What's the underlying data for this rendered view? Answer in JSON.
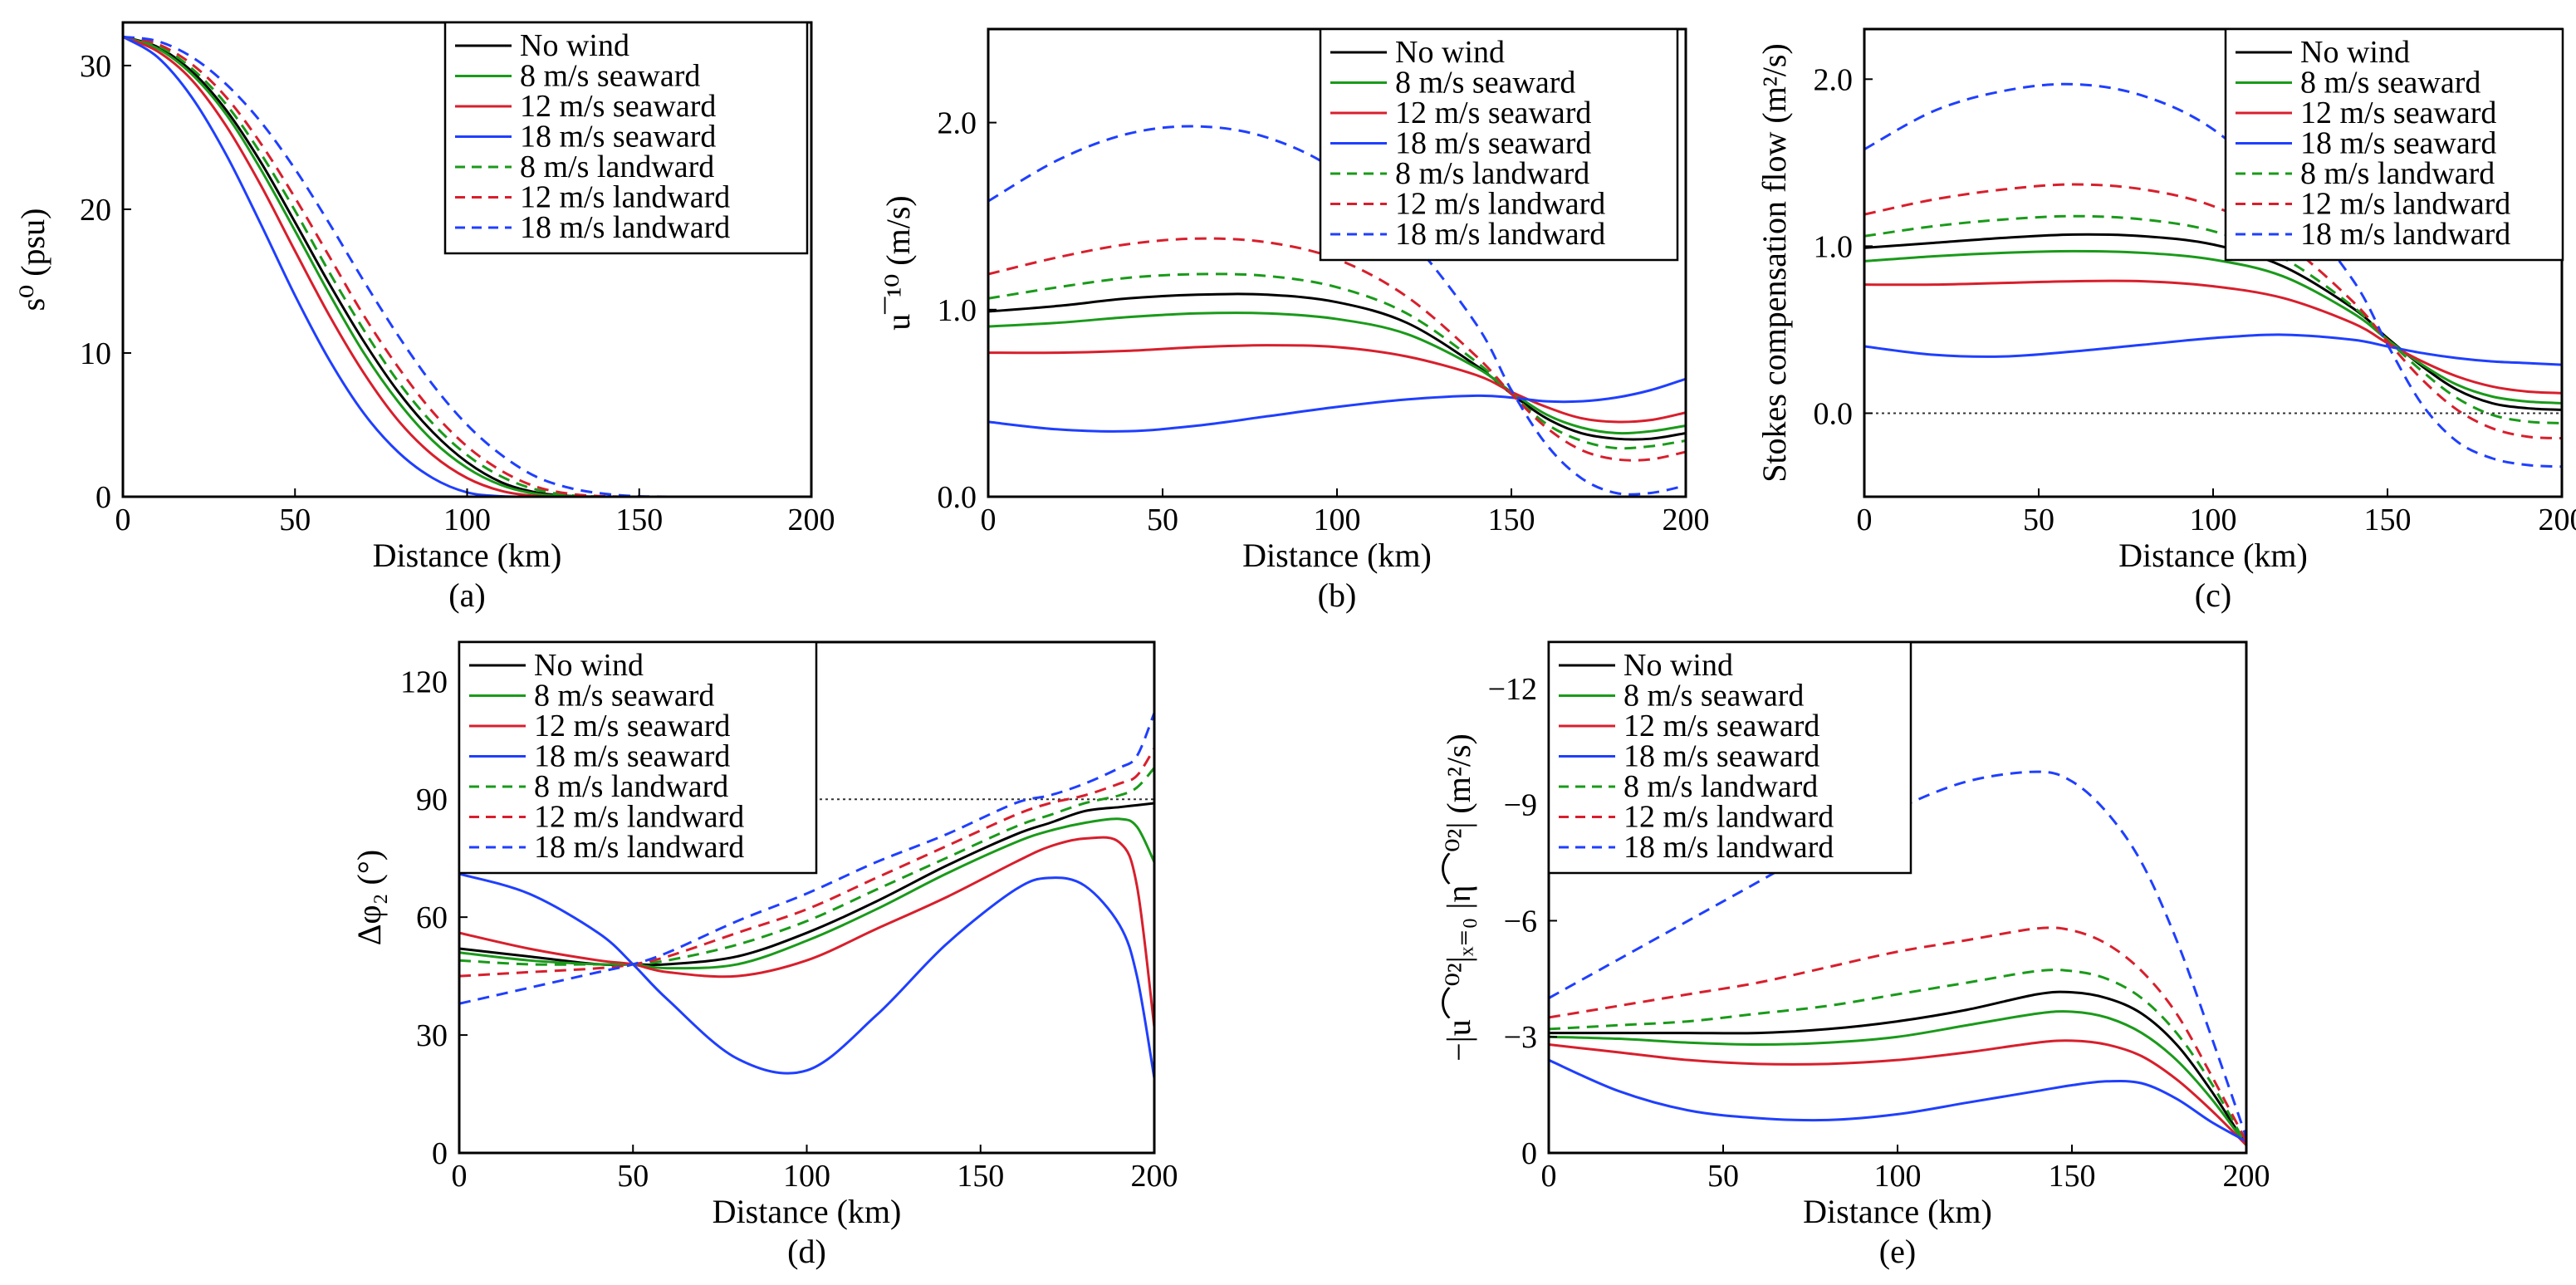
{
  "styles": {
    "series": [
      {
        "color": "#000000",
        "dash": false
      },
      {
        "color": "#1a9a1a",
        "dash": false
      },
      {
        "color": "#d81f2c",
        "dash": false
      },
      {
        "color": "#1f3fff",
        "dash": false
      },
      {
        "color": "#1a9a1a",
        "dash": true
      },
      {
        "color": "#d81f2c",
        "dash": true
      },
      {
        "color": "#1f3fff",
        "dash": true
      }
    ]
  },
  "chart_data": [
    {
      "type": "line",
      "panel_label": "(a)",
      "xlabel": "Distance (km)",
      "ylabel": "s⁰ (psu)",
      "xlim": [
        0,
        200
      ],
      "ylim": [
        0,
        33
      ],
      "xticks": [
        0,
        50,
        100,
        150,
        200
      ],
      "yticks": [
        0,
        10,
        20,
        30
      ],
      "legend_position": "top-right",
      "reference_line": null,
      "x": [
        0,
        10,
        20,
        30,
        40,
        50,
        60,
        70,
        80,
        90,
        100,
        110,
        120,
        130,
        140,
        150,
        160
      ],
      "series": [
        {
          "name": "No wind",
          "values": [
            32,
            31.3,
            29.6,
            26.9,
            23.3,
            19.1,
            14.8,
            10.8,
            7.3,
            4.5,
            2.4,
            1.0,
            0.3,
            0.05,
            0,
            0,
            0
          ]
        },
        {
          "name": "8 m/s seaward",
          "values": [
            32,
            31.2,
            29.4,
            26.6,
            22.8,
            18.5,
            14.1,
            10.0,
            6.6,
            3.9,
            2.0,
            0.8,
            0.2,
            0.03,
            0,
            0,
            0
          ]
        },
        {
          "name": "12 m/s seaward",
          "values": [
            32,
            31.0,
            29.0,
            25.8,
            21.7,
            17.1,
            12.6,
            8.6,
            5.3,
            2.9,
            1.3,
            0.4,
            0.05,
            0,
            0,
            0,
            0
          ]
        },
        {
          "name": "18 m/s seaward",
          "values": [
            32,
            30.6,
            27.8,
            23.8,
            19.0,
            14.0,
            9.5,
            5.8,
            3.1,
            1.3,
            0.3,
            0.03,
            0,
            0,
            0,
            0,
            0
          ]
        },
        {
          "name": "8 m/s landward",
          "values": [
            32,
            31.4,
            29.8,
            27.3,
            23.9,
            19.9,
            15.6,
            11.6,
            8.0,
            5.1,
            2.9,
            1.4,
            0.5,
            0.1,
            0,
            0,
            0
          ]
        },
        {
          "name": "12 m/s landward",
          "values": [
            32,
            31.5,
            30.1,
            27.8,
            24.6,
            20.8,
            16.7,
            12.6,
            9.0,
            5.9,
            3.5,
            1.8,
            0.7,
            0.2,
            0.03,
            0,
            0
          ]
        },
        {
          "name": "18 m/s landward",
          "values": [
            32,
            31.7,
            30.6,
            28.7,
            26.1,
            22.8,
            19.0,
            15.0,
            11.2,
            7.8,
            5.0,
            2.9,
            1.4,
            0.6,
            0.2,
            0.03,
            0
          ]
        }
      ]
    },
    {
      "type": "line",
      "panel_label": "(b)",
      "xlabel": "Distance (km)",
      "ylabel": "u¯¹⁰ (m/s)",
      "xlim": [
        0,
        200
      ],
      "ylim": [
        0,
        2.5
      ],
      "xticks": [
        0,
        50,
        100,
        150,
        200
      ],
      "yticks": [
        0.0,
        1.0,
        2.0
      ],
      "ytick_labels": [
        "0.0",
        "1.0",
        "2.0"
      ],
      "legend_position": "top-right",
      "reference_line": null,
      "x": [
        0,
        20,
        40,
        60,
        80,
        100,
        120,
        140,
        150,
        160,
        170,
        180,
        190,
        200
      ],
      "series": [
        {
          "name": "No wind",
          "values": [
            0.99,
            1.02,
            1.06,
            1.08,
            1.08,
            1.04,
            0.93,
            0.7,
            0.55,
            0.42,
            0.34,
            0.31,
            0.31,
            0.34
          ]
        },
        {
          "name": "8 m/s seaward",
          "values": [
            0.91,
            0.93,
            0.96,
            0.98,
            0.98,
            0.95,
            0.87,
            0.69,
            0.56,
            0.44,
            0.37,
            0.34,
            0.35,
            0.38
          ]
        },
        {
          "name": "12 m/s seaward",
          "values": [
            0.77,
            0.77,
            0.78,
            0.8,
            0.81,
            0.8,
            0.75,
            0.65,
            0.56,
            0.48,
            0.42,
            0.4,
            0.41,
            0.45
          ]
        },
        {
          "name": "18 m/s seaward",
          "values": [
            0.4,
            0.36,
            0.35,
            0.38,
            0.43,
            0.48,
            0.52,
            0.54,
            0.53,
            0.51,
            0.51,
            0.53,
            0.57,
            0.63
          ]
        },
        {
          "name": "8 m/s landward",
          "values": [
            1.06,
            1.12,
            1.17,
            1.19,
            1.18,
            1.12,
            0.98,
            0.72,
            0.55,
            0.39,
            0.3,
            0.26,
            0.27,
            0.3
          ]
        },
        {
          "name": "12 m/s landward",
          "values": [
            1.19,
            1.28,
            1.35,
            1.38,
            1.36,
            1.27,
            1.07,
            0.75,
            0.55,
            0.37,
            0.25,
            0.2,
            0.2,
            0.24
          ]
        },
        {
          "name": "18 m/s landward",
          "values": [
            1.58,
            1.8,
            1.94,
            1.98,
            1.92,
            1.74,
            1.4,
            0.92,
            0.57,
            0.28,
            0.1,
            0.02,
            0.02,
            0.06
          ]
        }
      ]
    },
    {
      "type": "line",
      "panel_label": "(c)",
      "xlabel": "Distance (km)",
      "ylabel": "Stokes compensation flow (m²/s)",
      "xlim": [
        0,
        200
      ],
      "ylim": [
        -0.5,
        2.3
      ],
      "xticks": [
        0,
        50,
        100,
        150,
        200
      ],
      "yticks": [
        0.0,
        1.0,
        2.0
      ],
      "ytick_labels": [
        "0.0",
        "1.0",
        "2.0"
      ],
      "legend_position": "top-right",
      "reference_line": {
        "axis": "y",
        "value": 0,
        "from": 0,
        "to": 200
      },
      "x": [
        0,
        20,
        40,
        60,
        80,
        100,
        120,
        140,
        150,
        160,
        170,
        180,
        190,
        200
      ],
      "series": [
        {
          "name": "No wind",
          "values": [
            0.99,
            1.02,
            1.05,
            1.07,
            1.06,
            1.01,
            0.88,
            0.63,
            0.45,
            0.28,
            0.14,
            0.06,
            0.03,
            0.02
          ]
        },
        {
          "name": "8 m/s seaward",
          "values": [
            0.91,
            0.94,
            0.96,
            0.97,
            0.96,
            0.92,
            0.82,
            0.6,
            0.44,
            0.29,
            0.17,
            0.1,
            0.07,
            0.06
          ]
        },
        {
          "name": "12 m/s seaward",
          "values": [
            0.77,
            0.77,
            0.78,
            0.79,
            0.79,
            0.76,
            0.69,
            0.54,
            0.42,
            0.31,
            0.22,
            0.16,
            0.13,
            0.12
          ]
        },
        {
          "name": "18 m/s seaward",
          "values": [
            0.4,
            0.35,
            0.34,
            0.37,
            0.41,
            0.45,
            0.47,
            0.44,
            0.4,
            0.36,
            0.33,
            0.31,
            0.3,
            0.29
          ]
        },
        {
          "name": "8 m/s landward",
          "values": [
            1.06,
            1.12,
            1.16,
            1.18,
            1.16,
            1.09,
            0.93,
            0.64,
            0.44,
            0.25,
            0.09,
            -0.01,
            -0.05,
            -0.06
          ]
        },
        {
          "name": "12 m/s landward",
          "values": [
            1.19,
            1.28,
            1.34,
            1.37,
            1.34,
            1.24,
            1.03,
            0.67,
            0.43,
            0.2,
            0.02,
            -0.09,
            -0.14,
            -0.15
          ]
        },
        {
          "name": "18 m/s landward",
          "values": [
            1.58,
            1.81,
            1.93,
            1.97,
            1.9,
            1.7,
            1.32,
            0.8,
            0.41,
            0.05,
            -0.17,
            -0.27,
            -0.31,
            -0.32
          ]
        }
      ]
    },
    {
      "type": "line",
      "panel_label": "(d)",
      "xlabel": "Distance (km)",
      "ylabel": "Δφ₂ (°)",
      "xlim": [
        0,
        200
      ],
      "ylim": [
        0,
        130
      ],
      "xticks": [
        0,
        50,
        100,
        150,
        200
      ],
      "yticks": [
        0,
        30,
        60,
        90,
        120
      ],
      "legend_position": "top-left",
      "reference_line": {
        "axis": "y",
        "value": 90,
        "from": 0,
        "to": 200
      },
      "x": [
        0,
        20,
        40,
        50,
        60,
        80,
        100,
        120,
        140,
        160,
        170,
        180,
        190,
        195,
        200
      ],
      "series": [
        {
          "name": "No wind",
          "values": [
            52,
            50,
            48,
            48,
            48,
            50,
            56,
            64,
            73,
            81,
            84,
            87,
            88,
            88.5,
            89
          ]
        },
        {
          "name": "8 m/s seaward",
          "values": [
            51,
            49,
            48,
            48,
            47,
            48,
            54,
            62,
            71,
            79,
            82,
            84,
            85,
            83,
            74
          ]
        },
        {
          "name": "12 m/s seaward",
          "values": [
            56,
            52,
            49,
            48,
            46,
            45,
            49,
            57,
            65,
            74,
            78,
            80,
            79,
            68,
            32
          ]
        },
        {
          "name": "18 m/s seaward",
          "values": [
            71,
            66,
            56,
            48,
            39,
            24,
            21,
            35,
            53,
            67,
            70,
            68,
            58,
            45,
            19
          ]
        },
        {
          "name": "8 m/s landward",
          "values": [
            49,
            48,
            48,
            48,
            49,
            53,
            59,
            67,
            75,
            83,
            86,
            89,
            91,
            93,
            98
          ]
        },
        {
          "name": "12 m/s landward",
          "values": [
            45,
            46,
            47,
            48,
            50,
            56,
            62,
            70,
            78,
            86,
            89,
            91,
            94,
            96,
            103
          ]
        },
        {
          "name": "18 m/s landward",
          "values": [
            38,
            42,
            46,
            48,
            51,
            59,
            66,
            74,
            81,
            89,
            91,
            94,
            98,
            101,
            112
          ]
        }
      ]
    },
    {
      "type": "line",
      "panel_label": "(e)",
      "xlabel": "Distance (km)",
      "ylabel": "−|u⌒⁰²|ₓ₌₀ |η⌒⁰²| (m²/s)",
      "xlim": [
        0,
        200
      ],
      "ylim": [
        0,
        13.2
      ],
      "xticks": [
        0,
        50,
        100,
        150,
        200
      ],
      "yticks": [
        0,
        3,
        6,
        9,
        12
      ],
      "ytick_labels": [
        "0",
        "−3",
        "−6",
        "−9",
        "−12"
      ],
      "legend_position": "top-left",
      "reference_line": null,
      "x": [
        0,
        20,
        40,
        60,
        80,
        100,
        120,
        140,
        150,
        160,
        170,
        180,
        190,
        200
      ],
      "series": [
        {
          "name": "No wind",
          "values": [
            3.1,
            3.1,
            3.1,
            3.1,
            3.2,
            3.4,
            3.7,
            4.1,
            4.15,
            4.0,
            3.6,
            2.8,
            1.6,
            0.2
          ]
        },
        {
          "name": "8 m/s seaward",
          "values": [
            3.0,
            2.95,
            2.85,
            2.8,
            2.85,
            3.0,
            3.3,
            3.6,
            3.65,
            3.5,
            3.1,
            2.4,
            1.4,
            0.2
          ]
        },
        {
          "name": "12 m/s seaward",
          "values": [
            2.8,
            2.6,
            2.4,
            2.3,
            2.3,
            2.4,
            2.6,
            2.85,
            2.9,
            2.8,
            2.5,
            1.9,
            1.1,
            0.2
          ]
        },
        {
          "name": "18 m/s seaward",
          "values": [
            2.4,
            1.6,
            1.1,
            0.9,
            0.85,
            1.0,
            1.3,
            1.6,
            1.75,
            1.85,
            1.8,
            1.4,
            0.8,
            0.3
          ]
        },
        {
          "name": "8 m/s landward",
          "values": [
            3.2,
            3.3,
            3.4,
            3.6,
            3.8,
            4.1,
            4.4,
            4.7,
            4.7,
            4.5,
            4.0,
            3.1,
            1.8,
            0.2
          ]
        },
        {
          "name": "12 m/s landward",
          "values": [
            3.5,
            3.8,
            4.1,
            4.4,
            4.8,
            5.2,
            5.5,
            5.8,
            5.75,
            5.4,
            4.7,
            3.6,
            2.0,
            0.3
          ]
        },
        {
          "name": "18 m/s landward",
          "values": [
            4.0,
            5.0,
            6.0,
            7.0,
            8.0,
            8.9,
            9.6,
            9.85,
            9.6,
            8.8,
            7.5,
            5.5,
            3.0,
            0.4
          ]
        }
      ]
    }
  ]
}
